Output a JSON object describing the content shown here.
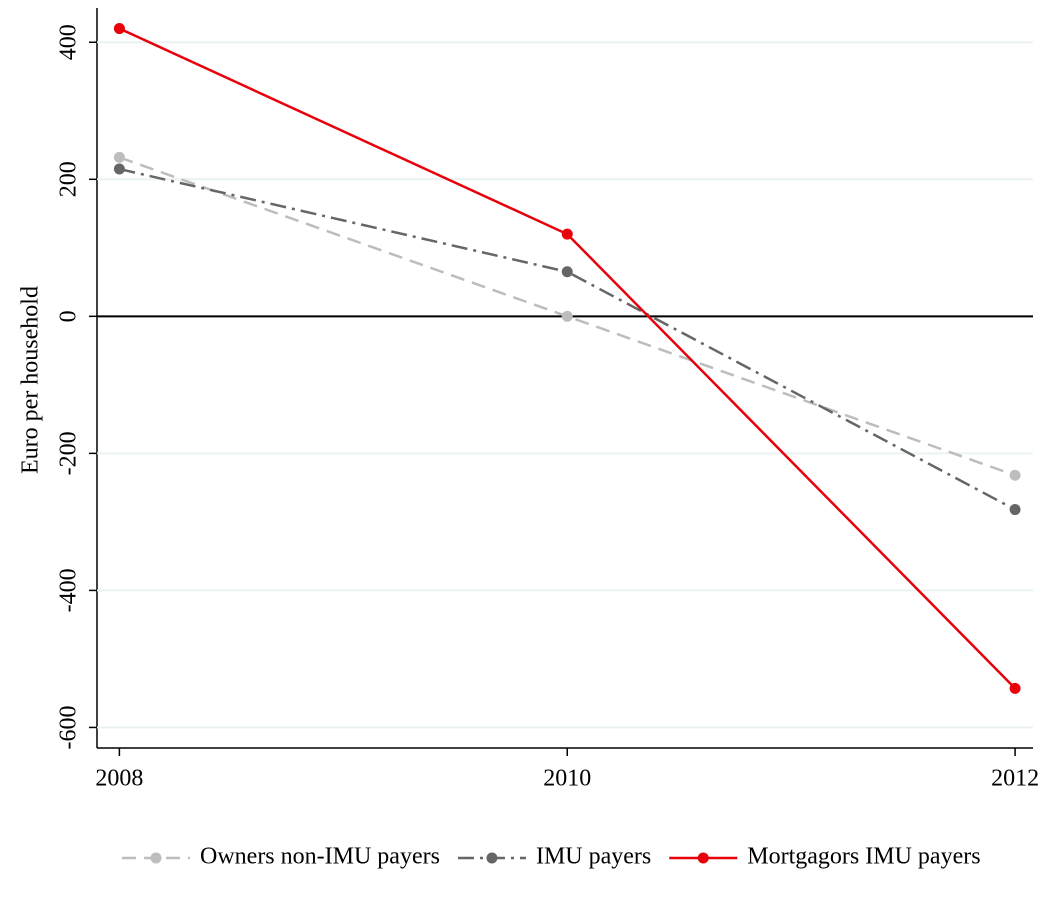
{
  "chart_data": {
    "type": "line",
    "y_label": "Euro per household",
    "x": [
      2008,
      2010,
      2012
    ],
    "series": [
      {
        "name": "Owners non-IMU payers",
        "color": "#bdbdbd",
        "dash": "14 8",
        "values": [
          232,
          0,
          -232
        ]
      },
      {
        "name": "IMU payers",
        "color": "#666666",
        "dash": "16 6 3 6",
        "values": [
          215,
          65,
          -282
        ]
      },
      {
        "name": "Mortgagors IMU payers",
        "color": "#e8000b",
        "dash": "none",
        "values": [
          420,
          120,
          -543
        ]
      }
    ],
    "xlim": [
      2007.9,
      2012.08
    ],
    "xticks": [
      2008,
      2010,
      2012
    ],
    "ylim": [
      -630,
      450
    ],
    "yticks": [
      -600,
      -400,
      -200,
      0,
      200,
      400
    ],
    "reference_line": 0,
    "grid": true,
    "legend": "bottom"
  }
}
